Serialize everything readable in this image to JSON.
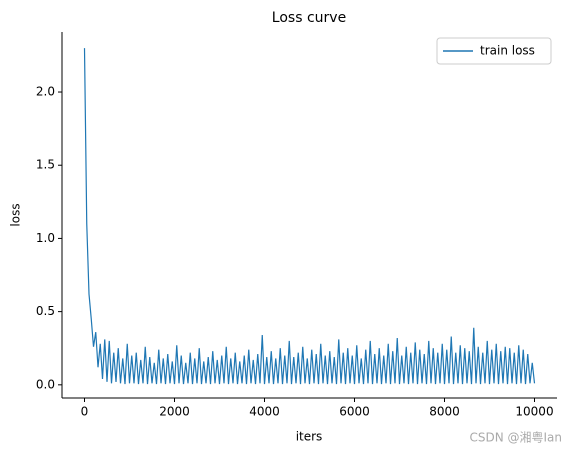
{
  "chart_data": {
    "type": "line",
    "title": "Loss curve",
    "xlabel": "iters",
    "ylabel": "loss",
    "watermark": "CSDN @湘粤Ian",
    "legend": "upper right",
    "xlim": [
      -500,
      10500
    ],
    "xticks": [
      0,
      2000,
      4000,
      6000,
      8000,
      10000
    ],
    "ylim": [
      -0.09,
      2.41
    ],
    "yticks": [
      {
        "value": 0,
        "label": "0.0"
      },
      {
        "value": 0.5,
        "label": "0.5"
      },
      {
        "value": 1,
        "label": "1.0"
      },
      {
        "value": 1.5,
        "label": "1.5"
      },
      {
        "value": 2,
        "label": "2.0"
      }
    ],
    "x": [
      0,
      50,
      100,
      150,
      200,
      250,
      300,
      350,
      400,
      450,
      500,
      550,
      600,
      650,
      700,
      750,
      800,
      850,
      900,
      950,
      1000,
      1050,
      1100,
      1150,
      1200,
      1250,
      1300,
      1350,
      1400,
      1450,
      1500,
      1550,
      1600,
      1650,
      1700,
      1750,
      1800,
      1850,
      1900,
      1950,
      2000,
      2050,
      2100,
      2150,
      2200,
      2250,
      2300,
      2350,
      2400,
      2450,
      2500,
      2550,
      2600,
      2650,
      2700,
      2750,
      2800,
      2850,
      2900,
      2950,
      3000,
      3050,
      3100,
      3150,
      3200,
      3250,
      3300,
      3350,
      3400,
      3450,
      3500,
      3550,
      3600,
      3650,
      3700,
      3750,
      3800,
      3850,
      3900,
      3950,
      4000,
      4050,
      4100,
      4150,
      4200,
      4250,
      4300,
      4350,
      4400,
      4450,
      4500,
      4550,
      4600,
      4650,
      4700,
      4750,
      4800,
      4850,
      4900,
      4950,
      5000,
      5050,
      5100,
      5150,
      5200,
      5250,
      5300,
      5350,
      5400,
      5450,
      5500,
      5550,
      5600,
      5650,
      5700,
      5750,
      5800,
      5850,
      5900,
      5950,
      6000,
      6050,
      6100,
      6150,
      6200,
      6250,
      6300,
      6350,
      6400,
      6450,
      6500,
      6550,
      6600,
      6650,
      6700,
      6750,
      6800,
      6850,
      6900,
      6950,
      7000,
      7050,
      7100,
      7150,
      7200,
      7250,
      7300,
      7350,
      7400,
      7450,
      7500,
      7550,
      7600,
      7650,
      7700,
      7750,
      7800,
      7850,
      7900,
      7950,
      8000,
      8050,
      8100,
      8150,
      8200,
      8250,
      8300,
      8350,
      8400,
      8450,
      8500,
      8550,
      8600,
      8650,
      8700,
      8750,
      8800,
      8850,
      8900,
      8950,
      9000,
      9050,
      9100,
      9150,
      9200,
      9250,
      9300,
      9350,
      9400,
      9450,
      9500,
      9550,
      9600,
      9650,
      9700,
      9750,
      9800,
      9850,
      9900,
      9950,
      10000
    ],
    "series": [
      {
        "name": "train loss",
        "color": "#1f77b4",
        "values": [
          2.3,
          1.1,
          0.62,
          0.45,
          0.26,
          0.36,
          0.12,
          0.28,
          0.04,
          0.31,
          0.02,
          0.3,
          0.01,
          0.22,
          0.02,
          0.25,
          0.01,
          0.18,
          0.005,
          0.28,
          0.01,
          0.2,
          0.01,
          0.22,
          0.005,
          0.17,
          0.01,
          0.26,
          0.005,
          0.19,
          0.01,
          0.15,
          0.005,
          0.24,
          0.01,
          0.18,
          0.005,
          0.21,
          0.01,
          0.16,
          0.005,
          0.27,
          0.01,
          0.2,
          0.005,
          0.15,
          0.01,
          0.22,
          0.005,
          0.18,
          0.01,
          0.25,
          0.005,
          0.16,
          0.01,
          0.19,
          0.005,
          0.23,
          0.01,
          0.17,
          0.005,
          0.2,
          0.01,
          0.26,
          0.005,
          0.18,
          0.01,
          0.22,
          0.005,
          0.16,
          0.01,
          0.2,
          0.005,
          0.24,
          0.01,
          0.17,
          0.005,
          0.21,
          0.01,
          0.34,
          0.005,
          0.19,
          0.01,
          0.23,
          0.005,
          0.18,
          0.01,
          0.25,
          0.005,
          0.2,
          0.01,
          0.3,
          0.005,
          0.19,
          0.01,
          0.22,
          0.005,
          0.26,
          0.01,
          0.18,
          0.005,
          0.24,
          0.01,
          0.21,
          0.005,
          0.28,
          0.01,
          0.2,
          0.005,
          0.23,
          0.01,
          0.19,
          0.005,
          0.31,
          0.01,
          0.22,
          0.005,
          0.25,
          0.01,
          0.2,
          0.005,
          0.27,
          0.01,
          0.18,
          0.005,
          0.24,
          0.01,
          0.3,
          0.005,
          0.21,
          0.01,
          0.25,
          0.005,
          0.2,
          0.01,
          0.28,
          0.005,
          0.23,
          0.01,
          0.32,
          0.005,
          0.2,
          0.01,
          0.26,
          0.005,
          0.22,
          0.01,
          0.29,
          0.005,
          0.24,
          0.01,
          0.21,
          0.005,
          0.3,
          0.01,
          0.25,
          0.005,
          0.22,
          0.01,
          0.28,
          0.005,
          0.24,
          0.01,
          0.33,
          0.005,
          0.22,
          0.01,
          0.27,
          0.005,
          0.25,
          0.01,
          0.23,
          0.005,
          0.39,
          0.01,
          0.26,
          0.005,
          0.22,
          0.01,
          0.3,
          0.005,
          0.24,
          0.01,
          0.28,
          0.005,
          0.23,
          0.01,
          0.26,
          0.005,
          0.25,
          0.01,
          0.22,
          0.005,
          0.27,
          0.01,
          0.24,
          0.005,
          0.21,
          0.01,
          0.15,
          0.01
        ]
      }
    ]
  }
}
